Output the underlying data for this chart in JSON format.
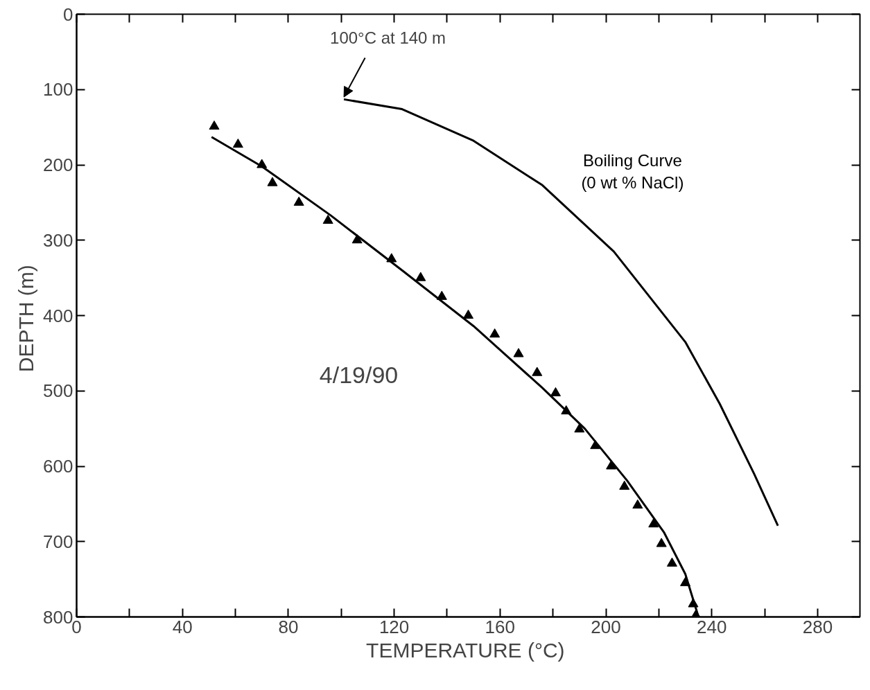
{
  "chart_data": {
    "type": "line",
    "xlabel": "TEMPERATURE  (°C)",
    "ylabel": "DEPTH  (m)",
    "xlim": [
      0,
      296
    ],
    "ylim": [
      800,
      0
    ],
    "xticks": [
      0,
      {
        "value": 20,
        "label": null
      },
      40,
      {
        "value": 60,
        "label": null
      },
      80,
      {
        "value": 100,
        "label": null
      },
      120,
      {
        "value": 140,
        "label": null
      },
      160,
      {
        "value": 180,
        "label": null
      },
      200,
      {
        "value": 220,
        "label": null
      },
      240,
      {
        "value": 260,
        "label": null
      },
      280
    ],
    "yticks": [
      0,
      100,
      200,
      300,
      400,
      500,
      600,
      700,
      800
    ],
    "grid": false,
    "series": [
      {
        "type": "scatter",
        "marker": "triangle",
        "color": "#000000",
        "x": [
          52,
          61,
          70,
          74,
          84,
          95,
          106,
          119,
          130,
          138,
          148,
          158,
          167,
          174,
          181,
          185,
          190,
          196,
          202,
          207,
          212,
          218,
          221,
          225,
          230,
          233,
          234
        ],
        "values": [
          149,
          173,
          200,
          224,
          250,
          274,
          300,
          325,
          350,
          375,
          400,
          425,
          451,
          476,
          503,
          527,
          551,
          573,
          600,
          627,
          652,
          677,
          703,
          729,
          755,
          783,
          798
        ]
      },
      {
        "line_style": "solid",
        "color": "#000000",
        "x": [
          51,
          70,
          96,
          123,
          150,
          176,
          192,
          208,
          222,
          230,
          235
        ],
        "values": [
          163,
          202,
          267,
          340,
          414,
          496,
          550,
          619,
          688,
          743,
          800
        ]
      },
      {
        "line_style": "solid",
        "name": "Boiling Curve\n(0 wt % NaCl)",
        "color": "#000000",
        "x": [
          101,
          123,
          150,
          176,
          203,
          230,
          243,
          256,
          265
        ],
        "values": [
          113,
          126,
          168,
          227,
          315,
          435,
          517,
          610,
          679
        ]
      }
    ],
    "annotations": [
      {
        "text": "100°C at 140 m",
        "x": 101,
        "y": 113
      },
      "4/19/90"
    ]
  }
}
